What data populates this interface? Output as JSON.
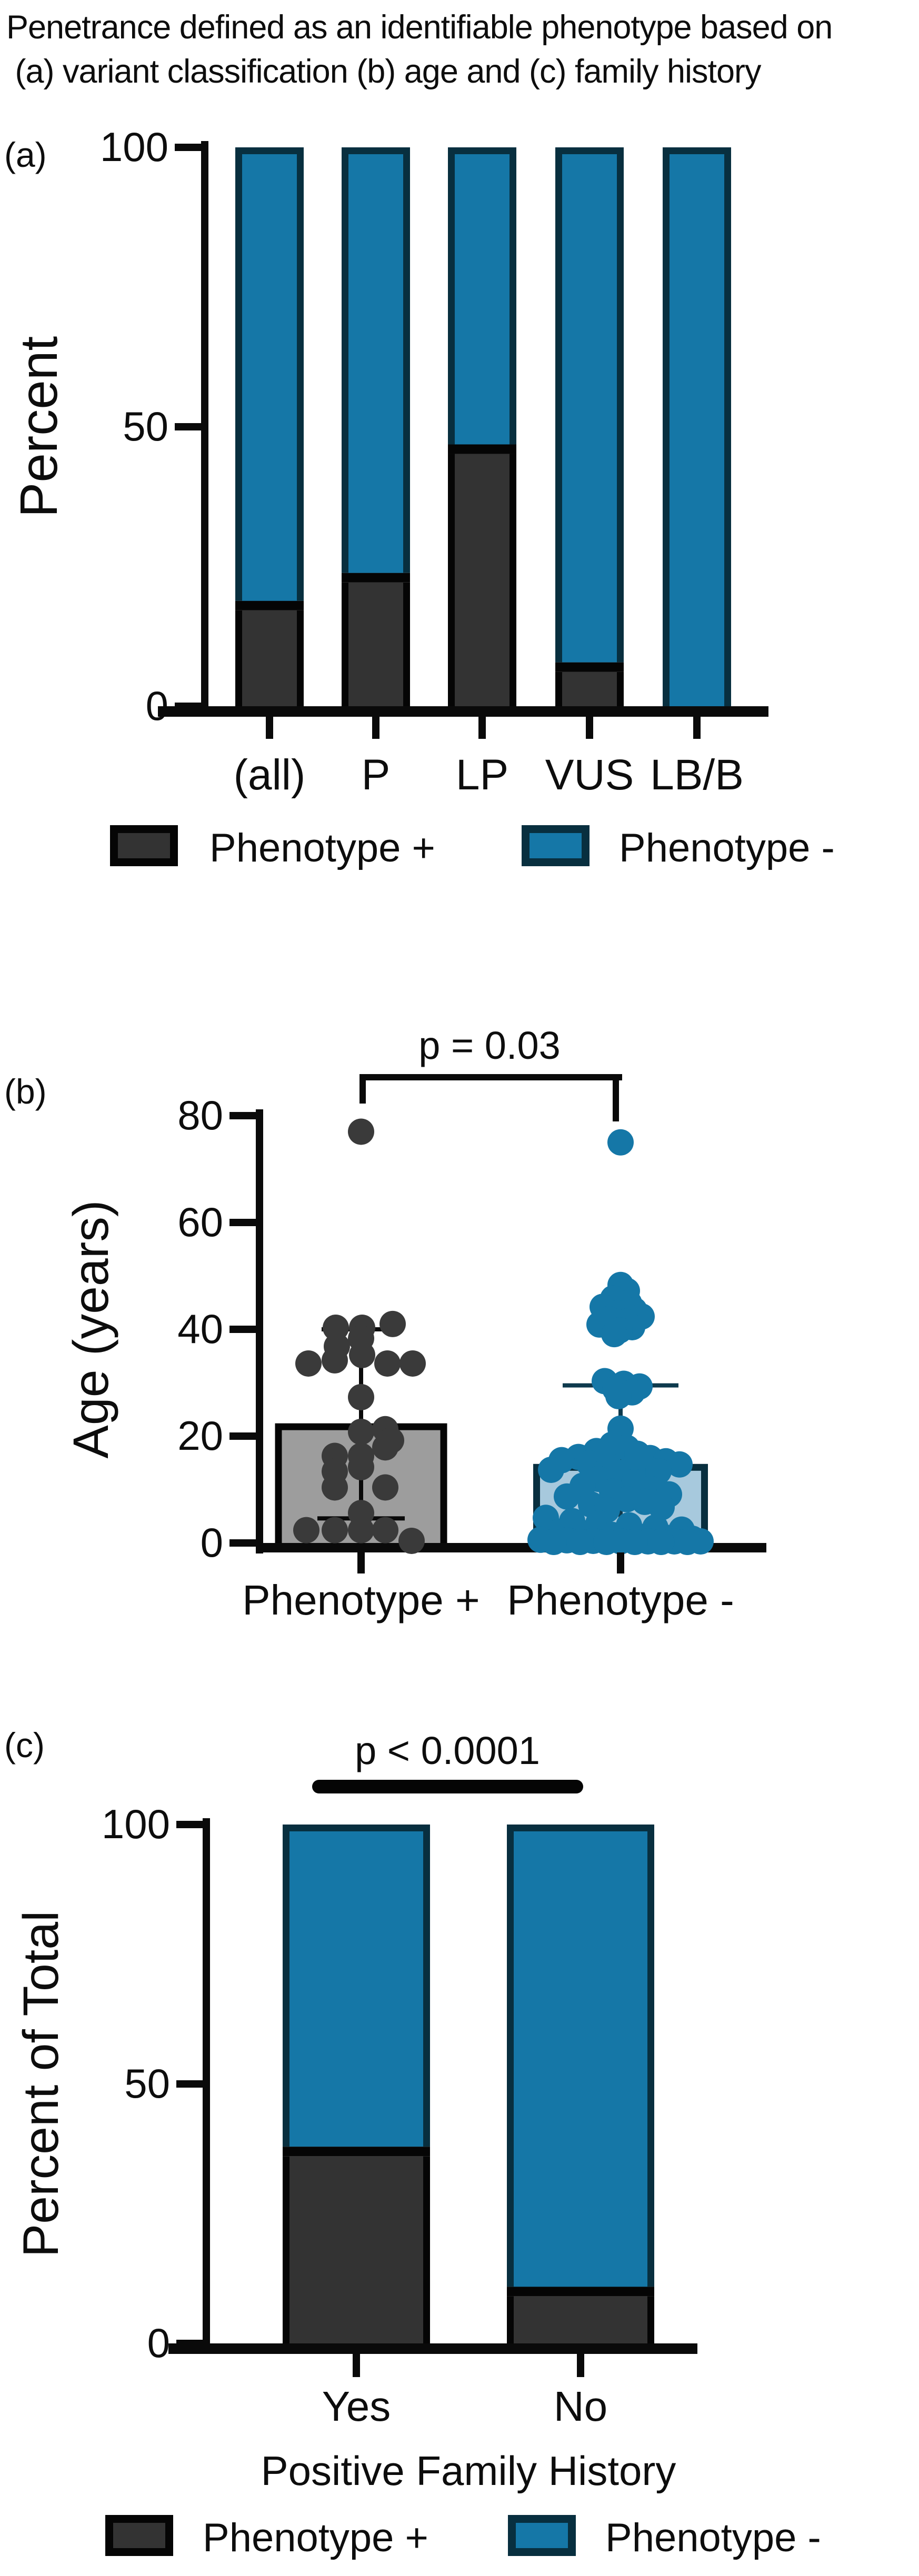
{
  "title": {
    "line1": "Penetrance defined as an identifiable phenotype based on",
    "line2": " (a) variant classification (b) age and (c) family history"
  },
  "colors": {
    "phenotype_positive_fill": "#333333",
    "phenotype_positive_border": "#050505",
    "phenotype_negative_fill": "#1577a7",
    "phenotype_negative_border": "#082f3f",
    "panel_b_positive_bar_fill": "#9d9d9d",
    "panel_b_negative_bar_fill": "#a7c9dd",
    "scatter_positive": "#3a3a3a",
    "scatter_negative": "#1577a7",
    "axis": "#0a0a0a"
  },
  "legend": {
    "positive_label": "Phenotype +",
    "negative_label": "Phenotype -"
  },
  "chart_data": [
    {
      "id": "panel_a",
      "panel_letter": "(a)",
      "type": "bar",
      "subtype": "stacked-percent",
      "title": "",
      "xlabel": "",
      "ylabel": "Percent",
      "ylim": [
        0,
        100
      ],
      "yticks": [
        0,
        50,
        100
      ],
      "grid": false,
      "legend_position": "below",
      "categories": [
        "(all)",
        "P",
        "LP",
        "VUS",
        "LB/B"
      ],
      "series": [
        {
          "name": "Phenotype +",
          "values": [
            18,
            23,
            46,
            7,
            0
          ]
        },
        {
          "name": "Phenotype -",
          "values": [
            82,
            77,
            54,
            93,
            100
          ]
        }
      ]
    },
    {
      "id": "panel_b",
      "panel_letter": "(b)",
      "type": "bar",
      "subtype": "bar-with-scatter",
      "title": "",
      "xlabel": "",
      "ylabel": "Age (years)",
      "ylim": [
        0,
        80
      ],
      "yticks": [
        0,
        20,
        40,
        60,
        80
      ],
      "grid": false,
      "annotation": {
        "text": "p = 0.03",
        "kind": "bracket"
      },
      "categories": [
        "Phenotype +",
        "Phenotype -"
      ],
      "groups": [
        {
          "name": "Phenotype +",
          "mean": 22.4,
          "whisker_low": 4.6,
          "whisker_high": 40,
          "points": [
            [
              0,
              77
            ],
            [
              -48,
              40.3
            ],
            [
              2,
              40.3
            ],
            [
              60,
              41
            ],
            [
              0,
              38.3
            ],
            [
              -46,
              36.8
            ],
            [
              2,
              35.2
            ],
            [
              -100,
              33.6
            ],
            [
              -50,
              34.2
            ],
            [
              50,
              33.6
            ],
            [
              98,
              33.6
            ],
            [
              0,
              27.3
            ],
            [
              46,
              21.3
            ],
            [
              0,
              20.8
            ],
            [
              57,
              19.2
            ],
            [
              46,
              17.9
            ],
            [
              -50,
              16.3
            ],
            [
              0,
              16.3
            ],
            [
              0,
              14.2
            ],
            [
              -50,
              13.4
            ],
            [
              -50,
              10.4
            ],
            [
              46,
              10.4
            ],
            [
              0,
              5.6
            ],
            [
              -104,
              2.4
            ],
            [
              -50,
              2.4
            ],
            [
              0,
              2.4
            ],
            [
              46,
              2.4
            ],
            [
              96,
              0.4
            ]
          ]
        },
        {
          "name": "Phenotype -",
          "mean": 14.8,
          "whisker_low": 0,
          "whisker_high": 29.5,
          "points": [
            [
              0,
              75
            ],
            [
              0,
              48.3
            ],
            [
              12,
              47.2
            ],
            [
              -14,
              45.8
            ],
            [
              16,
              44.9
            ],
            [
              -34,
              44.2
            ],
            [
              26,
              43.6
            ],
            [
              -6,
              43
            ],
            [
              40,
              42.4
            ],
            [
              -22,
              41.9
            ],
            [
              10,
              41.4
            ],
            [
              -40,
              40.9
            ],
            [
              22,
              40.4
            ],
            [
              -2,
              39.8
            ],
            [
              -12,
              39.1
            ],
            [
              -30,
              30.3
            ],
            [
              6,
              29.8
            ],
            [
              36,
              29.3
            ],
            [
              -10,
              28.8
            ],
            [
              22,
              28.2
            ],
            [
              -4,
              27.5
            ],
            [
              0,
              21.4
            ],
            [
              -16,
              18.4
            ],
            [
              12,
              17.8
            ],
            [
              -46,
              17.2
            ],
            [
              32,
              16.7
            ],
            [
              -80,
              16.1
            ],
            [
              56,
              15.9
            ],
            [
              -112,
              15.5
            ],
            [
              86,
              15.3
            ],
            [
              -60,
              14.9
            ],
            [
              112,
              14.7
            ],
            [
              -22,
              14.4
            ],
            [
              42,
              14.1
            ],
            [
              -132,
              13.7
            ],
            [
              72,
              13.4
            ],
            [
              2,
              13.1
            ],
            [
              -42,
              12
            ],
            [
              26,
              11.4
            ],
            [
              -72,
              10.7
            ],
            [
              56,
              10.1
            ],
            [
              -16,
              9.6
            ],
            [
              92,
              9.1
            ],
            [
              -102,
              8.7
            ],
            [
              12,
              8.2
            ],
            [
              46,
              7.7
            ],
            [
              -56,
              7.2
            ],
            [
              78,
              6.7
            ],
            [
              -26,
              6.2
            ],
            [
              -142,
              4.7
            ],
            [
              -92,
              4.1
            ],
            [
              -42,
              3.7
            ],
            [
              16,
              3.3
            ],
            [
              66,
              2.9
            ],
            [
              116,
              2.5
            ],
            [
              -116,
              2.1
            ],
            [
              -66,
              1.8
            ],
            [
              -16,
              1.5
            ],
            [
              36,
              1.2
            ],
            [
              86,
              1
            ],
            [
              136,
              0.8
            ],
            [
              -152,
              0.6
            ],
            [
              -102,
              0.5
            ],
            [
              -52,
              0.4
            ],
            [
              0,
              0.3
            ],
            [
              52,
              0.3
            ],
            [
              102,
              0.3
            ],
            [
              152,
              0.3
            ],
            [
              -127,
              0.2
            ],
            [
              -77,
              0.2
            ],
            [
              -27,
              0.2
            ],
            [
              27,
              0.2
            ],
            [
              77,
              0.2
            ],
            [
              127,
              0.2
            ]
          ]
        }
      ]
    },
    {
      "id": "panel_c",
      "panel_letter": "(c)",
      "type": "bar",
      "subtype": "stacked-percent",
      "title": "",
      "xlabel": "Positive Family History",
      "ylabel": "Percent of Total",
      "ylim": [
        0,
        100
      ],
      "yticks": [
        0,
        50,
        100
      ],
      "grid": false,
      "annotation": {
        "text": "p < 0.0001",
        "kind": "bar"
      },
      "legend_position": "below",
      "categories": [
        "Yes",
        "No"
      ],
      "series": [
        {
          "name": "Phenotype +",
          "values": [
            37,
            10
          ]
        },
        {
          "name": "Phenotype -",
          "values": [
            63,
            90
          ]
        }
      ]
    }
  ]
}
